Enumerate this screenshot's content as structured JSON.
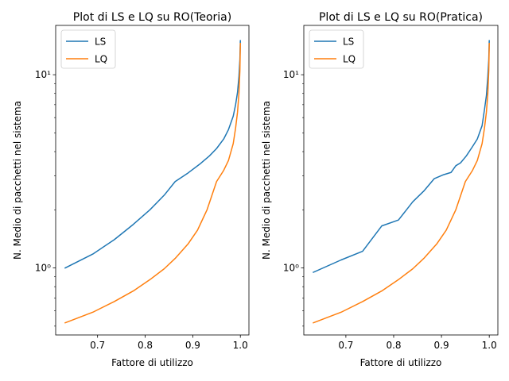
{
  "chart_data": [
    {
      "type": "line",
      "title": "Plot di LS e LQ su RO(Teoria)",
      "xlabel": "Fattore di utilizzo",
      "ylabel": "N. Medio di pacchetti nel sistema",
      "yscale": "log",
      "xlim": [
        0.612,
        1.018
      ],
      "ylim": [
        0.45,
        18
      ],
      "xticks": [
        0.7,
        0.8,
        0.9,
        1.0
      ],
      "xtick_labels": [
        "0.7",
        "0.8",
        "0.9",
        "1.0"
      ],
      "yticks": [
        1,
        10
      ],
      "ytick_labels": [
        "10⁰",
        "10¹"
      ],
      "legend_position": "upper-left",
      "grid": false,
      "series": [
        {
          "name": "LS",
          "color": "#1f77b4",
          "x": [
            0.632,
            0.69,
            0.735,
            0.775,
            0.81,
            0.84,
            0.863,
            0.89,
            0.915,
            0.935,
            0.95,
            0.965,
            0.975,
            0.985,
            0.99,
            0.994,
            0.997,
            0.999,
            1.0
          ],
          "y": [
            1.0,
            1.18,
            1.4,
            1.68,
            2.0,
            2.38,
            2.8,
            3.1,
            3.45,
            3.8,
            4.15,
            4.65,
            5.2,
            6.1,
            7.0,
            8.1,
            9.8,
            12.0,
            15.0
          ]
        },
        {
          "name": "LQ",
          "color": "#ff7f0e",
          "x": [
            0.632,
            0.69,
            0.735,
            0.775,
            0.81,
            0.84,
            0.863,
            0.89,
            0.91,
            0.93,
            0.95,
            0.965,
            0.975,
            0.985,
            0.99,
            0.994,
            0.997,
            0.999,
            1.0
          ],
          "y": [
            0.52,
            0.59,
            0.67,
            0.76,
            0.87,
            0.99,
            1.12,
            1.33,
            1.57,
            2.0,
            2.8,
            3.2,
            3.6,
            4.4,
            5.3,
            6.4,
            8.0,
            10.5,
            14.5
          ]
        }
      ]
    },
    {
      "type": "line",
      "title": "Plot di LS e LQ su RO(Pratica)",
      "xlabel": "Fattore di utilizzo",
      "ylabel": "N. Medio di pacchetti nel sistema",
      "yscale": "log",
      "xlim": [
        0.612,
        1.018
      ],
      "ylim": [
        0.45,
        18
      ],
      "xticks": [
        0.7,
        0.8,
        0.9,
        1.0
      ],
      "xtick_labels": [
        "0.7",
        "0.8",
        "0.9",
        "1.0"
      ],
      "yticks": [
        1,
        10
      ],
      "ytick_labels": [
        "10⁰",
        "10¹"
      ],
      "legend_position": "upper-left",
      "grid": false,
      "series": [
        {
          "name": "LS",
          "color": "#1f77b4",
          "x": [
            0.632,
            0.69,
            0.735,
            0.775,
            0.81,
            0.84,
            0.863,
            0.885,
            0.903,
            0.92,
            0.93,
            0.94,
            0.952,
            0.965,
            0.975,
            0.985,
            0.99,
            0.994,
            0.997,
            0.999,
            1.0
          ],
          "y": [
            0.95,
            1.1,
            1.22,
            1.65,
            1.77,
            2.2,
            2.5,
            2.9,
            3.03,
            3.12,
            3.38,
            3.5,
            3.8,
            4.25,
            4.65,
            5.45,
            6.6,
            7.8,
            9.8,
            12.0,
            15.0
          ]
        },
        {
          "name": "LQ",
          "color": "#ff7f0e",
          "x": [
            0.632,
            0.69,
            0.735,
            0.775,
            0.81,
            0.84,
            0.863,
            0.89,
            0.91,
            0.93,
            0.95,
            0.965,
            0.975,
            0.985,
            0.99,
            0.994,
            0.997,
            0.999,
            1.0
          ],
          "y": [
            0.52,
            0.59,
            0.67,
            0.76,
            0.87,
            0.99,
            1.12,
            1.33,
            1.57,
            2.0,
            2.8,
            3.2,
            3.6,
            4.4,
            5.3,
            6.4,
            8.0,
            10.5,
            14.5
          ]
        }
      ]
    }
  ]
}
